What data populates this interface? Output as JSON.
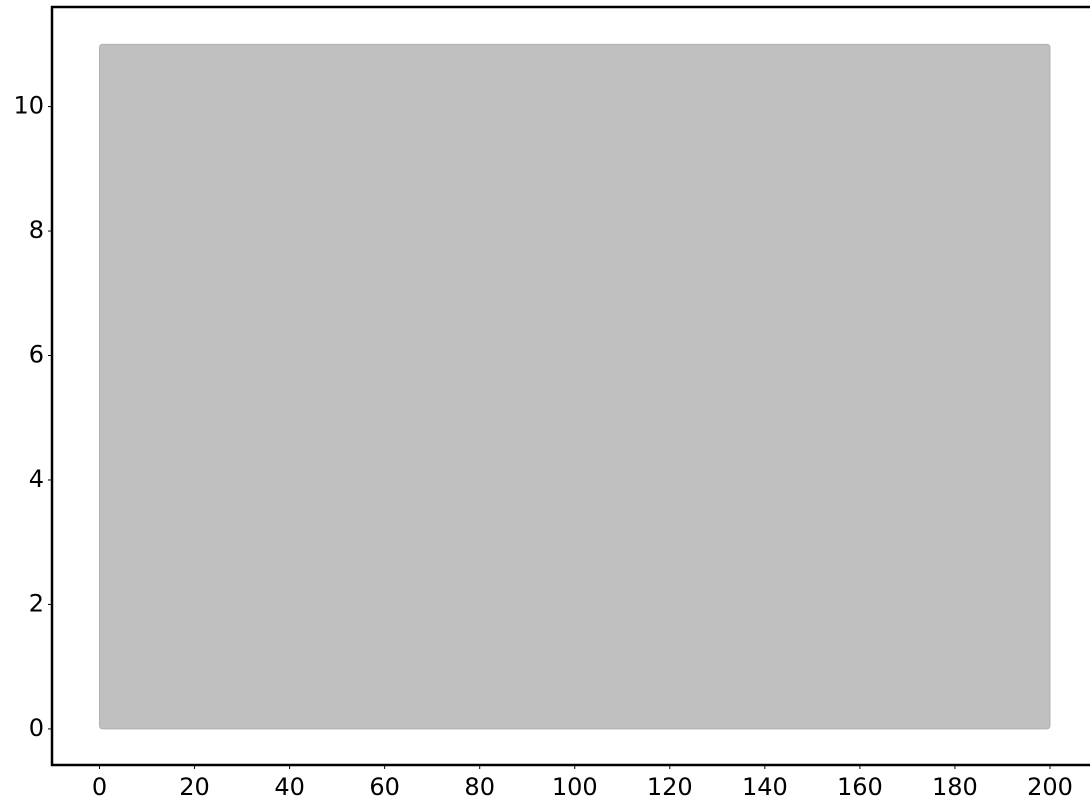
{
  "chart_data": {
    "type": "image",
    "x": [
      0,
      200
    ],
    "y": [
      0,
      11
    ],
    "color": "#c0c0c0",
    "xlim": [
      -10,
      208
    ],
    "ylim": [
      -0.58,
      11.6
    ],
    "xticks": [
      0,
      20,
      40,
      60,
      80,
      100,
      120,
      140,
      160,
      180,
      200
    ],
    "yticks": [
      0,
      2,
      4,
      6,
      8,
      10
    ]
  }
}
